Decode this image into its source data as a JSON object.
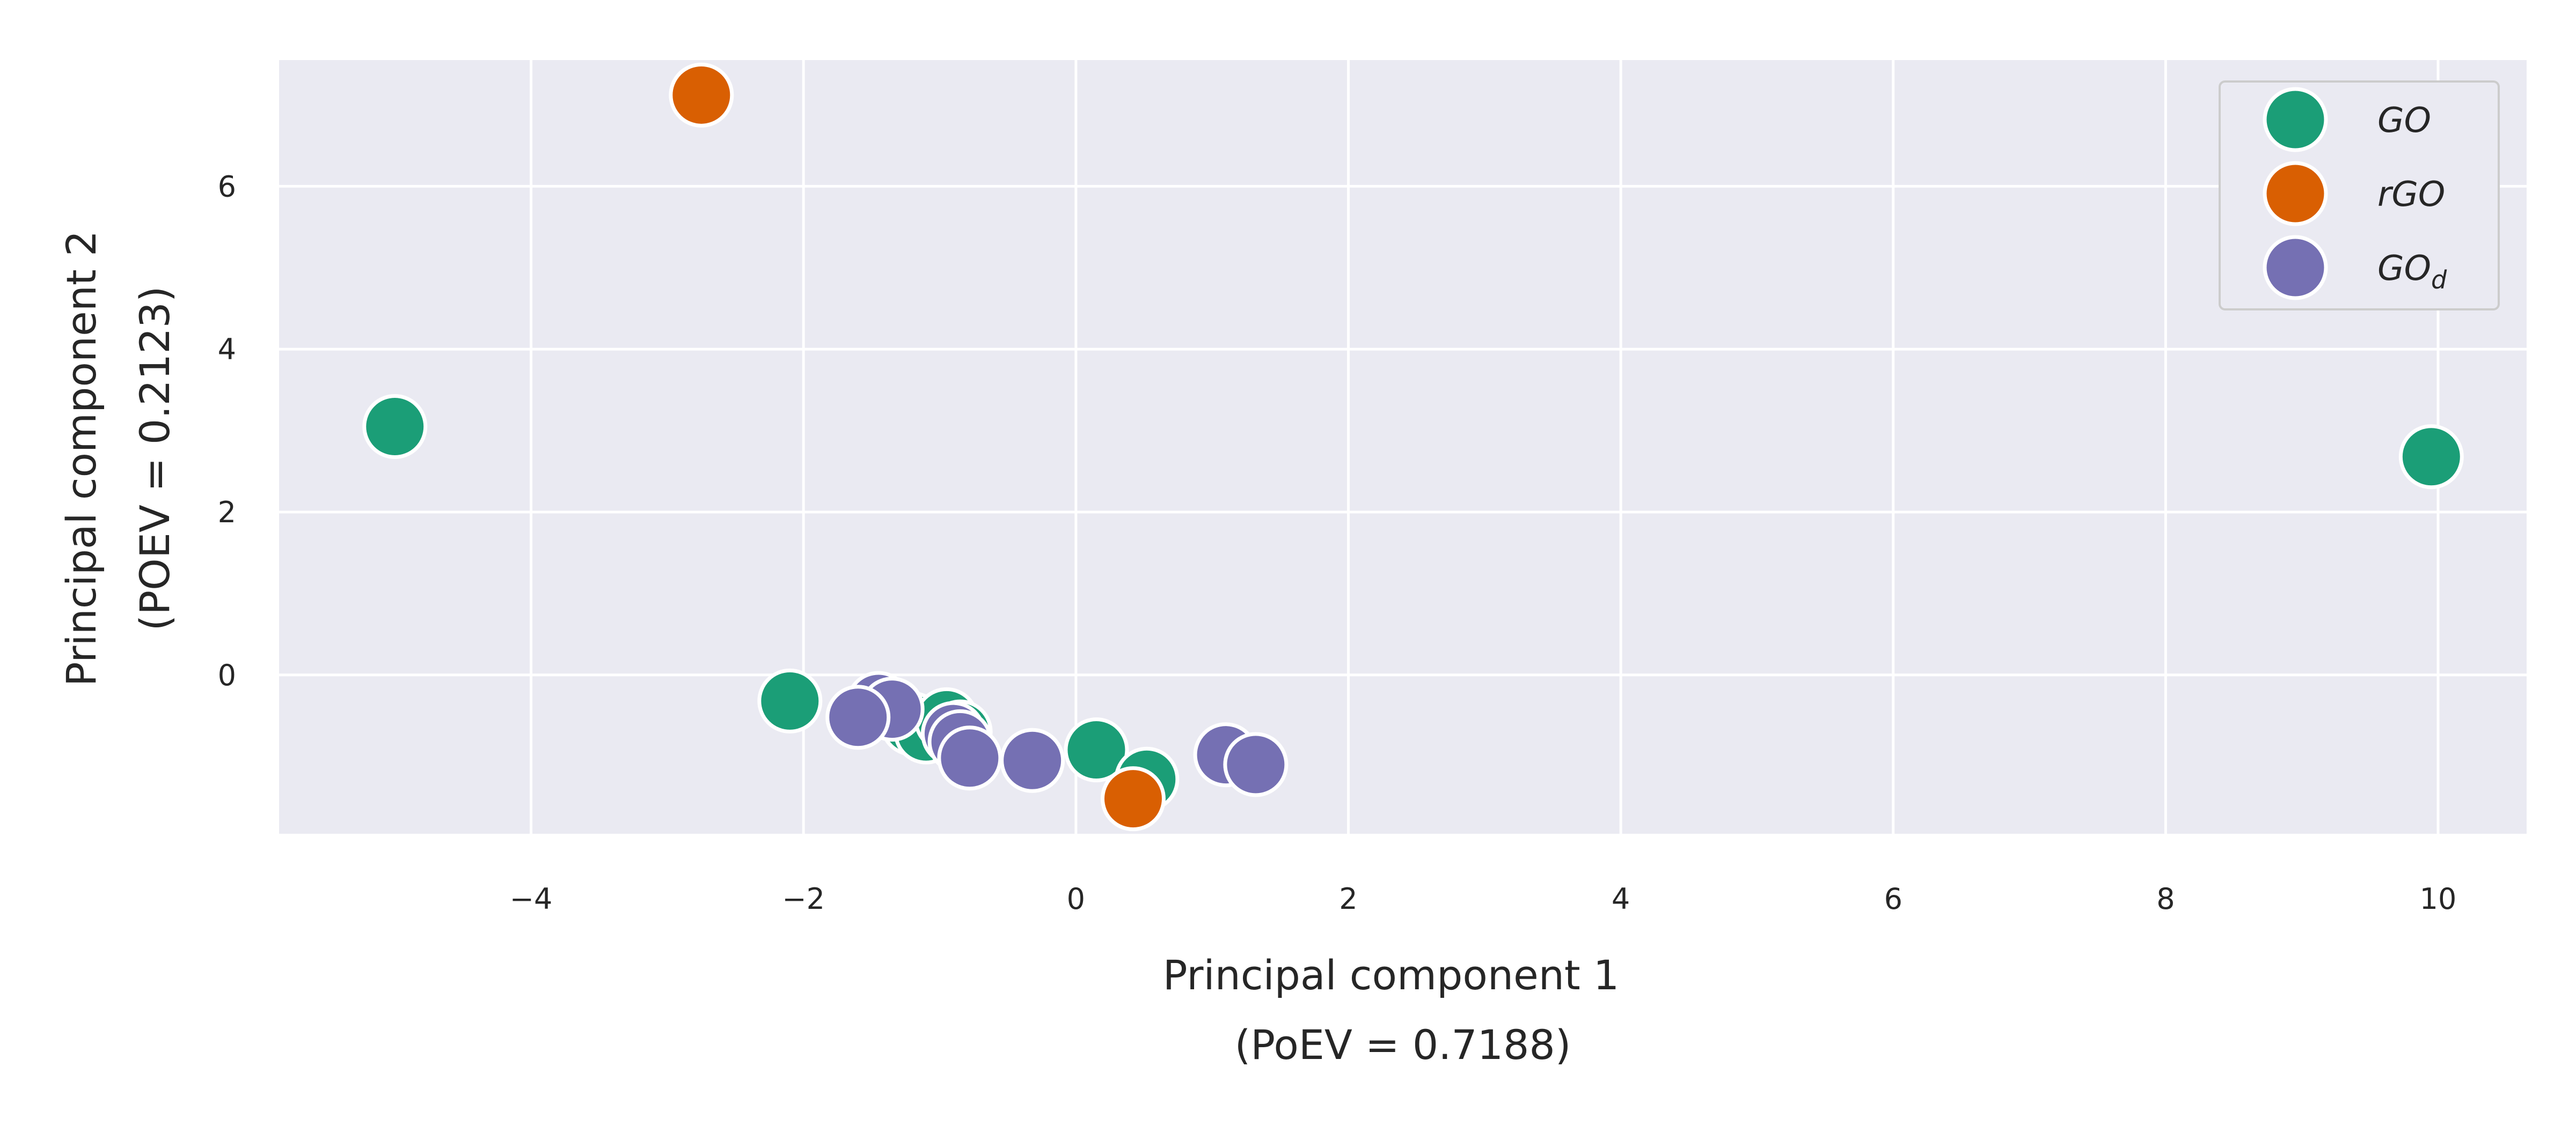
{
  "chart_data": {
    "type": "scatter",
    "xlabel": [
      "Principal component 1",
      "(PoEV = 0.7188)"
    ],
    "ylabel": [
      "Principal component 2",
      "(POEV = 0.2123)"
    ],
    "xlim": [
      -5.85,
      10.65
    ],
    "ylim": [
      -1.95,
      7.55
    ],
    "x_ticks": [
      -4,
      -2,
      0,
      2,
      4,
      6,
      8,
      10
    ],
    "x_tick_labels": [
      "−4",
      "−2",
      "0",
      "2",
      "4",
      "6",
      "8",
      "10"
    ],
    "y_ticks": [
      0,
      2,
      4,
      6
    ],
    "y_tick_labels": [
      "0",
      "2",
      "4",
      "6"
    ],
    "grid": true,
    "legend_position": "top-right",
    "series": [
      {
        "name": "GO",
        "legend_main": "GO",
        "legend_sub": "",
        "color": "#1b9e77",
        "points": [
          {
            "x": -5.0,
            "y": 3.05
          },
          {
            "x": 9.95,
            "y": 2.68
          },
          {
            "x": -2.1,
            "y": -0.32
          },
          {
            "x": -1.2,
            "y": -0.6
          },
          {
            "x": -1.1,
            "y": -0.7
          },
          {
            "x": -0.95,
            "y": -0.55
          },
          {
            "x": -0.85,
            "y": -0.7
          },
          {
            "x": 0.15,
            "y": -0.92
          },
          {
            "x": 0.52,
            "y": -1.28
          }
        ]
      },
      {
        "name": "rGO",
        "legend_main": "rGO",
        "legend_sub": "",
        "color": "#d95f02",
        "points": [
          {
            "x": -2.75,
            "y": 7.12
          },
          {
            "x": 0.42,
            "y": -1.52
          }
        ]
      },
      {
        "name": "GOd",
        "legend_main": "GO",
        "legend_sub": "d",
        "color": "#7570b3",
        "points": [
          {
            "x": -1.45,
            "y": -0.35
          },
          {
            "x": -1.35,
            "y": -0.42
          },
          {
            "x": -1.6,
            "y": -0.52
          },
          {
            "x": -0.9,
            "y": -0.72
          },
          {
            "x": -0.85,
            "y": -0.82
          },
          {
            "x": -0.78,
            "y": -1.02
          },
          {
            "x": -0.32,
            "y": -1.05
          },
          {
            "x": 1.1,
            "y": -0.98
          },
          {
            "x": 1.32,
            "y": -1.1
          }
        ]
      }
    ]
  }
}
